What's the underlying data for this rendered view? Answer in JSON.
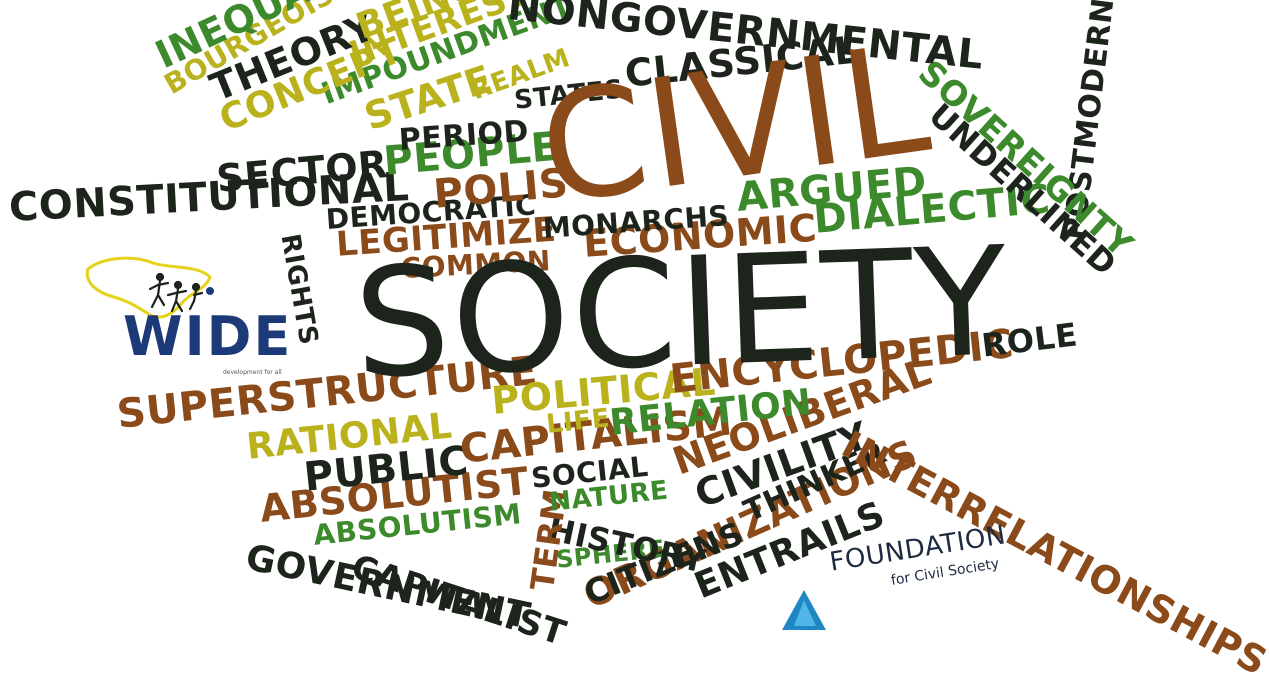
{
  "colors": {
    "brown": "#8a4a1a",
    "green": "#3c8a2c",
    "yellow": "#b9b21d",
    "dark": "#1d241c",
    "logo_blue": "#1c3a78"
  },
  "words": [
    {
      "text": "SOCIETY",
      "color": "dark"
    },
    {
      "text": "CIVIL",
      "color": "brown"
    },
    {
      "text": "NONGOVERNMENTAL",
      "color": "dark"
    },
    {
      "text": "INEQUALI",
      "color": "green"
    },
    {
      "text": "BOURGEOISIE",
      "color": "yellow"
    },
    {
      "text": "BEINGS",
      "color": "yellow"
    },
    {
      "text": "THEORY",
      "color": "dark"
    },
    {
      "text": "CONCEPT",
      "color": "yellow"
    },
    {
      "text": "INTEREST",
      "color": "yellow"
    },
    {
      "text": "IMPOUNDMENT",
      "color": "green"
    },
    {
      "text": "REALM",
      "color": "yellow"
    },
    {
      "text": "STATE",
      "color": "yellow"
    },
    {
      "text": "STATES",
      "color": "dark"
    },
    {
      "text": "CLASSICAL",
      "color": "dark"
    },
    {
      "text": "SOVEREIGNTY",
      "color": "green"
    },
    {
      "text": "UNDERLINED",
      "color": "dark"
    },
    {
      "text": "PERIOD",
      "color": "dark"
    },
    {
      "text": "SECTOR",
      "color": "dark"
    },
    {
      "text": "PEOPLE",
      "color": "green"
    },
    {
      "text": "CONSTITUTIONAL",
      "color": "dark"
    },
    {
      "text": "POLIS",
      "color": "brown"
    },
    {
      "text": "ARGUED",
      "color": "green"
    },
    {
      "text": "DEMOCRATIC",
      "color": "dark"
    },
    {
      "text": "MONARCHS",
      "color": "dark"
    },
    {
      "text": "DIALECTIC",
      "color": "green"
    },
    {
      "text": "LEGITIMIZE",
      "color": "brown"
    },
    {
      "text": "ECONOMIC",
      "color": "brown"
    },
    {
      "text": "RIGHTS",
      "color": "dark"
    },
    {
      "text": "COMMON",
      "color": "brown"
    },
    {
      "text": "POSTMODERN",
      "color": "dark"
    },
    {
      "text": "ROLE",
      "color": "dark"
    },
    {
      "text": "ENCYCLOPEDIC",
      "color": "brown"
    },
    {
      "text": "POLITICAL",
      "color": "yellow"
    },
    {
      "text": "SUPERSTRUCTURE",
      "color": "brown"
    },
    {
      "text": "LIFE",
      "color": "yellow"
    },
    {
      "text": "RELATION",
      "color": "green"
    },
    {
      "text": "RATIONAL",
      "color": "yellow"
    },
    {
      "text": "CAPITALISM",
      "color": "brown"
    },
    {
      "text": "NEOLIBERAL",
      "color": "brown"
    },
    {
      "text": "INTERRELATIONSHIPS",
      "color": "brown"
    },
    {
      "text": "PUBLIC",
      "color": "dark"
    },
    {
      "text": "SOCIAL",
      "color": "dark"
    },
    {
      "text": "CIVILITY",
      "color": "dark"
    },
    {
      "text": "ABSOLUTIST",
      "color": "brown"
    },
    {
      "text": "NATURE",
      "color": "green"
    },
    {
      "text": "THINKER",
      "color": "dark"
    },
    {
      "text": "ABSOLUTISM",
      "color": "green"
    },
    {
      "text": "TERM",
      "color": "brown"
    },
    {
      "text": "HISTORY",
      "color": "dark"
    },
    {
      "text": "SPHERE",
      "color": "green"
    },
    {
      "text": "ENTRAILS",
      "color": "dark"
    },
    {
      "text": "GOVERNMENT",
      "color": "dark"
    },
    {
      "text": "CAPITALIST",
      "color": "dark"
    },
    {
      "text": "CITIZENS",
      "color": "dark"
    },
    {
      "text": "ORGANIZATIONS",
      "color": "brown"
    }
  ],
  "logo_wide": {
    "text": "WIDE",
    "tagline": "development for all",
    "icon": "africa-map-people-icon"
  },
  "logo_foundation": {
    "line1": "FOUNDATION",
    "line2": "for Civil Society",
    "icon": "triangle-mark-icon"
  }
}
